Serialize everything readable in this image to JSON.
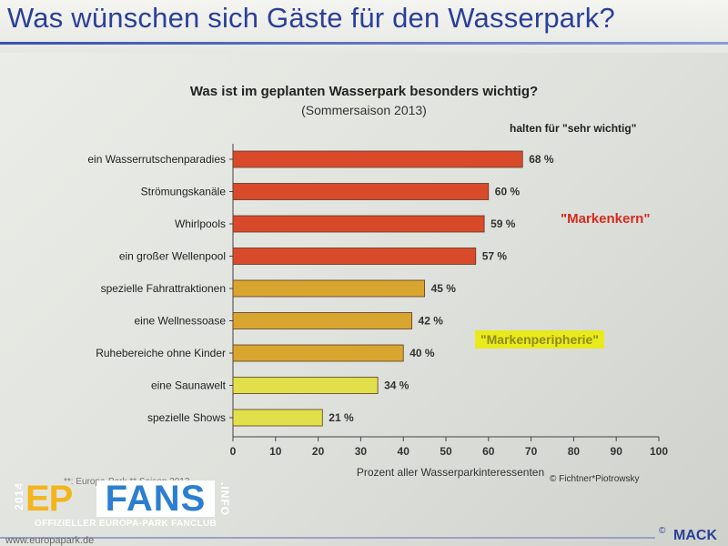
{
  "slide": {
    "title": "Was wünschen sich Gäste für den Wasserpark?",
    "value_heading": "halten für \"sehr wichtig\"",
    "callout_core": "\"Markenkern\"",
    "callout_periphery": "\"Markenperipherie\"",
    "credit": "© Fichtner*Piotrowsky",
    "source_note": "**: Europa-Park ** Saison 2013",
    "footer_url": "www.europapark.de",
    "mack_label": "MACK",
    "mack_mark": "©"
  },
  "logo": {
    "year": "2014",
    "ep": "EP",
    "fans": "FANS",
    "info": ".INFO",
    "club": "OFFIZIELLER EUROPA-PARK FANCLUB"
  },
  "colors": {
    "core": "#d94a2a",
    "periphery": "#d8a62e",
    "minor": "#e2e04a",
    "title": "#2b3f9a"
  },
  "chart_data": {
    "type": "bar",
    "orientation": "horizontal",
    "title": "Was ist im geplanten Wasserpark besonders wichtig?",
    "subtitle": "(Sommersaison 2013)",
    "xlabel": "Prozent aller Wasserparkinteressenten",
    "xlim": [
      0,
      100
    ],
    "xticks": [
      0,
      10,
      20,
      30,
      40,
      50,
      60,
      70,
      80,
      90,
      100
    ],
    "categories": [
      "ein Wasserrutschenparadies",
      "Strömungskanäle",
      "Whirlpools",
      "ein großer Wellenpool",
      "spezielle Fahrattraktionen",
      "eine Wellnessoase",
      "Ruhebereiche ohne Kinder",
      "eine Saunawelt",
      "spezielle Shows"
    ],
    "values": [
      68,
      60,
      59,
      57,
      45,
      42,
      40,
      34,
      21
    ],
    "value_labels": [
      "68 %",
      "60 %",
      "59 %",
      "57 %",
      "45 %",
      "42 %",
      "40 %",
      "34 %",
      "21 %"
    ],
    "groups": [
      "core",
      "core",
      "core",
      "core",
      "periphery",
      "periphery",
      "periphery",
      "minor",
      "minor"
    ],
    "grid": false,
    "legend": "none"
  }
}
